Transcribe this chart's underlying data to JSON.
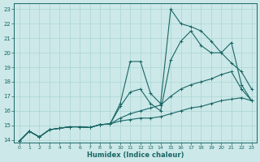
{
  "xlabel": "Humidex (Indice chaleur)",
  "bg_color": "#cce8e8",
  "grid_color": "#aad4d4",
  "line_color": "#1a6666",
  "xlim": [
    -0.5,
    23.5
  ],
  "ylim": [
    13.8,
    23.4
  ],
  "xticks": [
    0,
    1,
    2,
    3,
    4,
    5,
    6,
    7,
    8,
    9,
    10,
    11,
    12,
    13,
    14,
    15,
    16,
    17,
    18,
    19,
    20,
    21,
    22,
    23
  ],
  "yticks": [
    14,
    15,
    16,
    17,
    18,
    19,
    20,
    21,
    22,
    23
  ],
  "lines": [
    {
      "x": [
        0,
        1,
        2,
        3,
        4,
        5,
        6,
        7,
        8,
        9,
        10,
        11,
        12,
        13,
        14,
        15,
        16,
        17,
        18,
        19,
        20,
        21,
        22,
        23
      ],
      "y": [
        13.9,
        14.6,
        14.2,
        14.7,
        14.8,
        14.9,
        14.9,
        14.85,
        15.05,
        15.1,
        15.3,
        15.4,
        15.5,
        15.5,
        15.6,
        15.8,
        16.0,
        16.2,
        16.3,
        16.5,
        16.7,
        16.8,
        16.9,
        16.7
      ]
    },
    {
      "x": [
        0,
        1,
        2,
        3,
        4,
        5,
        6,
        7,
        8,
        9,
        10,
        11,
        12,
        13,
        14,
        15,
        16,
        17,
        18,
        19,
        20,
        21,
        22,
        23
      ],
      "y": [
        13.9,
        14.6,
        14.2,
        14.7,
        14.8,
        14.9,
        14.9,
        14.85,
        15.05,
        15.1,
        15.5,
        15.8,
        16.0,
        16.2,
        16.4,
        17.0,
        17.5,
        17.8,
        18.0,
        18.2,
        18.5,
        18.7,
        17.5,
        16.7
      ]
    },
    {
      "x": [
        0,
        1,
        2,
        3,
        4,
        5,
        6,
        7,
        8,
        9,
        10,
        11,
        12,
        13,
        14,
        15,
        16,
        17,
        18,
        19,
        20,
        21,
        22,
        23
      ],
      "y": [
        13.9,
        14.6,
        14.2,
        14.7,
        14.8,
        14.9,
        14.9,
        14.85,
        15.05,
        15.1,
        16.3,
        17.3,
        17.5,
        16.5,
        16.0,
        19.5,
        20.8,
        21.5,
        20.5,
        20.0,
        20.0,
        19.3,
        18.7,
        17.5
      ]
    },
    {
      "x": [
        0,
        1,
        2,
        3,
        4,
        5,
        6,
        7,
        8,
        9,
        10,
        11,
        12,
        13,
        14,
        15,
        16,
        17,
        18,
        19,
        20,
        21,
        22,
        23
      ],
      "y": [
        13.9,
        14.6,
        14.2,
        14.7,
        14.8,
        14.9,
        14.9,
        14.85,
        15.05,
        15.1,
        16.5,
        19.4,
        19.4,
        17.2,
        16.5,
        23.0,
        22.0,
        21.8,
        21.5,
        20.8,
        20.0,
        20.7,
        17.8,
        16.7
      ]
    }
  ]
}
